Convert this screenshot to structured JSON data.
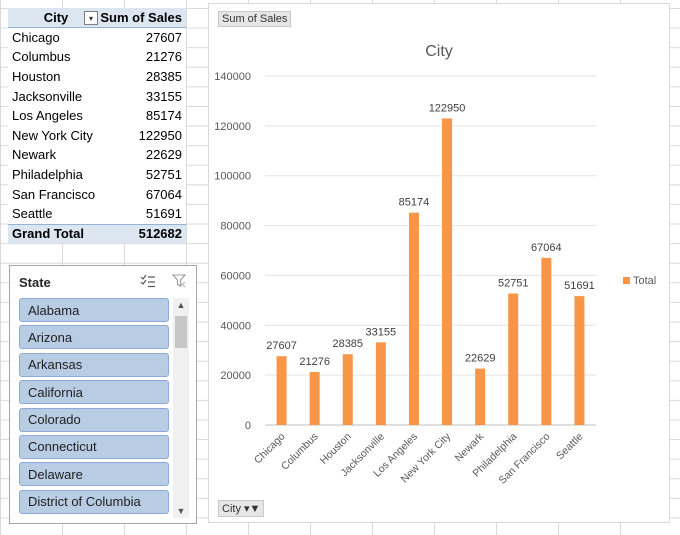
{
  "pivot": {
    "header_row_label": "City",
    "header_value_label": "Sum of Sales",
    "rows": [
      {
        "city": "Chicago",
        "sales": "27607"
      },
      {
        "city": "Columbus",
        "sales": "21276"
      },
      {
        "city": "Houston",
        "sales": "28385"
      },
      {
        "city": "Jacksonville",
        "sales": "33155"
      },
      {
        "city": "Los Angeles",
        "sales": "85174"
      },
      {
        "city": "New York City",
        "sales": "122950"
      },
      {
        "city": "Newark",
        "sales": "22629"
      },
      {
        "city": "Philadelphia",
        "sales": "52751"
      },
      {
        "city": "San Francisco",
        "sales": "67064"
      },
      {
        "city": "Seattle",
        "sales": "51691"
      }
    ],
    "total_label": "Grand Total",
    "total_value": "512682"
  },
  "slicer": {
    "title": "State",
    "items": [
      "Alabama",
      "Arizona",
      "Arkansas",
      "California",
      "Colorado",
      "Connecticut",
      "Delaware",
      "District of Columbia"
    ]
  },
  "chart_field_buttons": {
    "values_button": "Sum of Sales",
    "axis_button": "City"
  },
  "chart_data": {
    "type": "bar",
    "title": "City",
    "categories": [
      "Chicago",
      "Columbus",
      "Houston",
      "Jacksonville",
      "Los Angeles",
      "New York City",
      "Newark",
      "Philadelphia",
      "San Francisco",
      "Seattle"
    ],
    "series": [
      {
        "name": "Total",
        "values": [
          27607,
          21276,
          28385,
          33155,
          85174,
          122950,
          22629,
          52751,
          67064,
          51691
        ],
        "color": "#f79646"
      }
    ],
    "ylim": [
      0,
      140000
    ],
    "yticks": [
      0,
      20000,
      40000,
      60000,
      80000,
      100000,
      120000,
      140000
    ],
    "grid": true,
    "legend": "right",
    "data_labels": true
  }
}
